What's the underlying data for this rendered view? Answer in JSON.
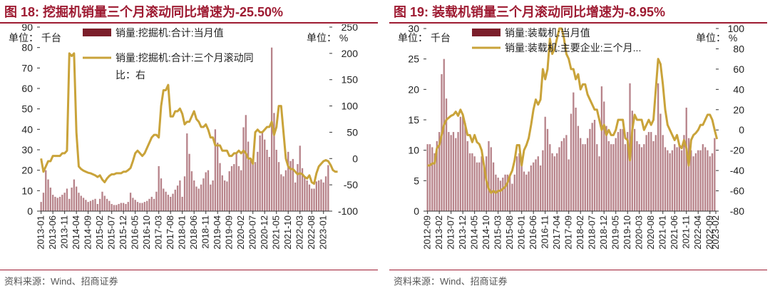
{
  "figures": [
    {
      "title": "图 18: 挖掘机销量三个月滚动同比增速为-25.50%",
      "source": "资料来源：Wind、招商证券",
      "left_unit": "单位：  千台",
      "right_unit": "单位：  %",
      "legend": {
        "bar": "销量:挖掘机:合计:当月值",
        "line_1": "销量:挖掘机:合计:三个月滚动同",
        "line_2": "比：右"
      }
    },
    {
      "title": "图 19: 装载机销量三个月滚动同比增速为-8.95%",
      "source": "资料来源：Wind、招商证券",
      "left_unit": "单位：  千台",
      "right_unit": "单位：  %",
      "legend": {
        "bar": "销量:装载机:当月值",
        "line_1": "销量:装载机:主要企业:三个月..."
      }
    }
  ],
  "chart_data": [
    {
      "type": "bar",
      "start_month": "2013-01",
      "x_tick_labels": [
        "2013-01",
        "2013-06",
        "2013-11",
        "2014-04",
        "2014-09",
        "2015-02",
        "2015-07",
        "2015-12",
        "2016-05",
        "2016-10",
        "2017-03",
        "2017-08",
        "2018-01",
        "2018-06",
        "2018-11",
        "2019-04",
        "2019-09",
        "2020-02",
        "2020-07",
        "2020-12",
        "2021-05",
        "2021-10",
        "2022-03",
        "2022-08",
        "2023-01"
      ],
      "y_left": {
        "ticks": [
          0,
          10,
          20,
          30,
          40,
          50,
          60,
          70,
          80,
          90
        ],
        "min": 0,
        "max": 90,
        "unit": "千台"
      },
      "y_right": {
        "ticks": [
          -100,
          -50,
          0,
          50,
          100,
          150,
          200,
          250
        ],
        "min": -100,
        "max": 250,
        "unit": "%"
      },
      "series": [
        {
          "name": "销量:挖掘机:合计:当月值",
          "axis": "left",
          "kind": "bar",
          "values": [
            4.5,
            9.0,
            20.0,
            15.5,
            11.5,
            8.0,
            7.0,
            6.5,
            7.0,
            8.0,
            9.0,
            11.0,
            6.0,
            11.5,
            15.5,
            12.0,
            9.0,
            7.5,
            6.5,
            5.5,
            4.5,
            5.0,
            5.5,
            6.0,
            3.5,
            6.0,
            9.5,
            7.5,
            6.0,
            5.0,
            3.5,
            3.0,
            3.0,
            3.5,
            4.0,
            4.0,
            3.5,
            4.5,
            9.0,
            6.5,
            5.5,
            4.5,
            4.0,
            4.0,
            4.5,
            5.0,
            6.0,
            7.0,
            6.0,
            9.5,
            22.0,
            16.0,
            11.0,
            9.5,
            8.0,
            7.0,
            8.5,
            10.5,
            12.5,
            15.0,
            7.0,
            17.0,
            38.0,
            28.0,
            19.5,
            15.0,
            12.0,
            11.0,
            13.0,
            16.0,
            19.0,
            20.0,
            13.0,
            15.0,
            40.0,
            33.5,
            23.5,
            17.5,
            15.0,
            14.5,
            19.5,
            22.0,
            23.0,
            28.5,
            22.0,
            20.0,
            41.0,
            47.0,
            34.0,
            25.0,
            25.5,
            24.0,
            29.0,
            37.0,
            39.0,
            35.0,
            30.0,
            26.5,
            80.0,
            48.0,
            30.0,
            24.0,
            18.0,
            17.0,
            20.0,
            29.0,
            24.5,
            25.5,
            14.0,
            23.0,
            32.0,
            21.0,
            17.0,
            15.0,
            13.0,
            11.0,
            11.0,
            14.5,
            15.0,
            15.5,
            14.0,
            17.0,
            22.5
          ]
        },
        {
          "name": "销量:挖掘机:合计:三个月滚动同比：右",
          "axis": "right",
          "kind": "line",
          "values": [
            0,
            -25,
            -15,
            -5,
            -5,
            5,
            5,
            5,
            5,
            10,
            10,
            15,
            200,
            195,
            200,
            50,
            -15,
            -20,
            -23,
            -25,
            -27,
            -28,
            -30,
            -32,
            -35,
            -32,
            -40,
            -45,
            -38,
            -33,
            -30,
            -30,
            -28,
            -28,
            -28,
            -25,
            -25,
            -22,
            -18,
            -5,
            10,
            15,
            10,
            5,
            10,
            20,
            30,
            40,
            45,
            45,
            40,
            100,
            130,
            130,
            140,
            80,
            80,
            90,
            90,
            95,
            85,
            65,
            70,
            70,
            80,
            90,
            75,
            70,
            60,
            60,
            65,
            55,
            40,
            40,
            25,
            25,
            25,
            15,
            15,
            15,
            5,
            5,
            10,
            10,
            15,
            10,
            15,
            10,
            0,
            0,
            -10,
            50,
            55,
            50,
            50,
            55,
            60,
            60,
            70,
            45,
            60,
            100,
            100,
            50,
            0,
            -15,
            -20,
            -20,
            -25,
            -30,
            -28,
            -30,
            -35,
            -38,
            -32,
            -45,
            -48,
            -28,
            -15,
            -10,
            -5,
            -3,
            -5,
            -12,
            -22,
            -25,
            -25
          ]
        }
      ]
    },
    {
      "type": "bar",
      "start_month": "2012-09",
      "x_tick_labels": [
        "2012-09",
        "2013-02",
        "2013-07",
        "2013-12",
        "2014-05",
        "2014-10",
        "2015-03",
        "2015-08",
        "2016-01",
        "2016-06",
        "2016-11",
        "2017-04",
        "2017-09",
        "2018-02",
        "2018-07",
        "2018-12",
        "2019-05",
        "2019-10",
        "2020-03",
        "2020-08",
        "2021-01",
        "2021-06",
        "2021-11",
        "2022-04",
        "2022-09",
        "2023-02"
      ],
      "y_left": {
        "ticks": [
          0,
          5,
          10,
          15,
          20,
          25,
          30
        ],
        "min": 0,
        "max": 30,
        "unit": "千台"
      },
      "y_right": {
        "ticks": [
          -80,
          -60,
          -40,
          -20,
          0,
          20,
          40,
          60,
          80,
          100
        ],
        "min": -80,
        "max": 100,
        "unit": "%"
      },
      "series": [
        {
          "name": "销量:装载机:当月值",
          "axis": "left",
          "kind": "bar",
          "values": [
            11.0,
            11.0,
            10.5,
            9.5,
            11.5,
            13.0,
            22.5,
            25.0,
            18.5,
            13.0,
            12.5,
            13.0,
            12.0,
            13.0,
            15.5,
            16.0,
            14.5,
            11.5,
            9.5,
            9.5,
            9.0,
            8.0,
            8.0,
            9.0,
            7.5,
            9.0,
            11.5,
            10.5,
            8.0,
            6.0,
            5.5,
            5.0,
            5.5,
            6.0,
            6.0,
            6.0,
            4.5,
            6.0,
            9.0,
            9.5,
            8.0,
            6.5,
            6.0,
            6.5,
            7.5,
            8.0,
            8.5,
            9.0,
            7.5,
            10.0,
            15.5,
            13.5,
            11.0,
            9.5,
            9.0,
            9.5,
            10.5,
            11.5,
            12.0,
            12.5,
            8.5,
            16.0,
            19.5,
            17.0,
            14.0,
            12.0,
            11.0,
            11.0,
            12.0,
            13.5,
            14.5,
            15.0,
            11.0,
            9.0,
            20.5,
            18.0,
            14.0,
            11.5,
            11.0,
            11.0,
            12.0,
            13.0,
            13.5,
            13.5,
            11.0,
            13.0,
            21.0,
            16.5,
            13.5,
            11.5,
            11.0,
            10.5,
            11.0,
            12.5,
            13.0,
            13.0,
            11.5,
            12.5,
            21.0,
            16.0,
            12.5,
            10.5,
            10.0,
            9.5,
            10.0,
            11.0,
            10.5,
            11.0,
            10.0,
            12.5,
            17.0,
            12.0,
            10.0,
            9.0,
            9.5,
            10.0,
            10.0,
            11.0,
            10.5,
            10.0,
            9.0,
            9.5,
            12.0
          ]
        },
        {
          "name": "销量:装载机:主要企业:三个月...",
          "axis": "right",
          "kind": "line",
          "values": [
            -35,
            -35,
            -33,
            -33,
            -18,
            -15,
            -5,
            5,
            10,
            12,
            14,
            15,
            18,
            14,
            20,
            15,
            5,
            -5,
            -5,
            -12,
            -5,
            -12,
            -14,
            -20,
            -35,
            -50,
            -58,
            -62,
            -60,
            -62,
            -60,
            -60,
            -58,
            -56,
            -52,
            -45,
            -40,
            -30,
            -15,
            -15,
            -35,
            -20,
            -15,
            -8,
            5,
            20,
            30,
            25,
            30,
            60,
            50,
            60,
            90,
            75,
            80,
            90,
            100,
            100,
            90,
            75,
            70,
            60,
            60,
            50,
            55,
            40,
            45,
            45,
            35,
            30,
            25,
            20,
            20,
            10,
            0,
            5,
            -5,
            0,
            -5,
            -5,
            0,
            10,
            10,
            10,
            -8,
            -10,
            -30,
            0,
            15,
            10,
            10,
            10,
            0,
            5,
            10,
            5,
            10,
            40,
            70,
            65,
            45,
            20,
            5,
            0,
            -5,
            -10,
            -5,
            -15,
            -18,
            -10,
            -18,
            -35,
            -10,
            -5,
            -3,
            0,
            5,
            5,
            10,
            15,
            15,
            10,
            0,
            -9
          ]
        }
      ]
    }
  ]
}
